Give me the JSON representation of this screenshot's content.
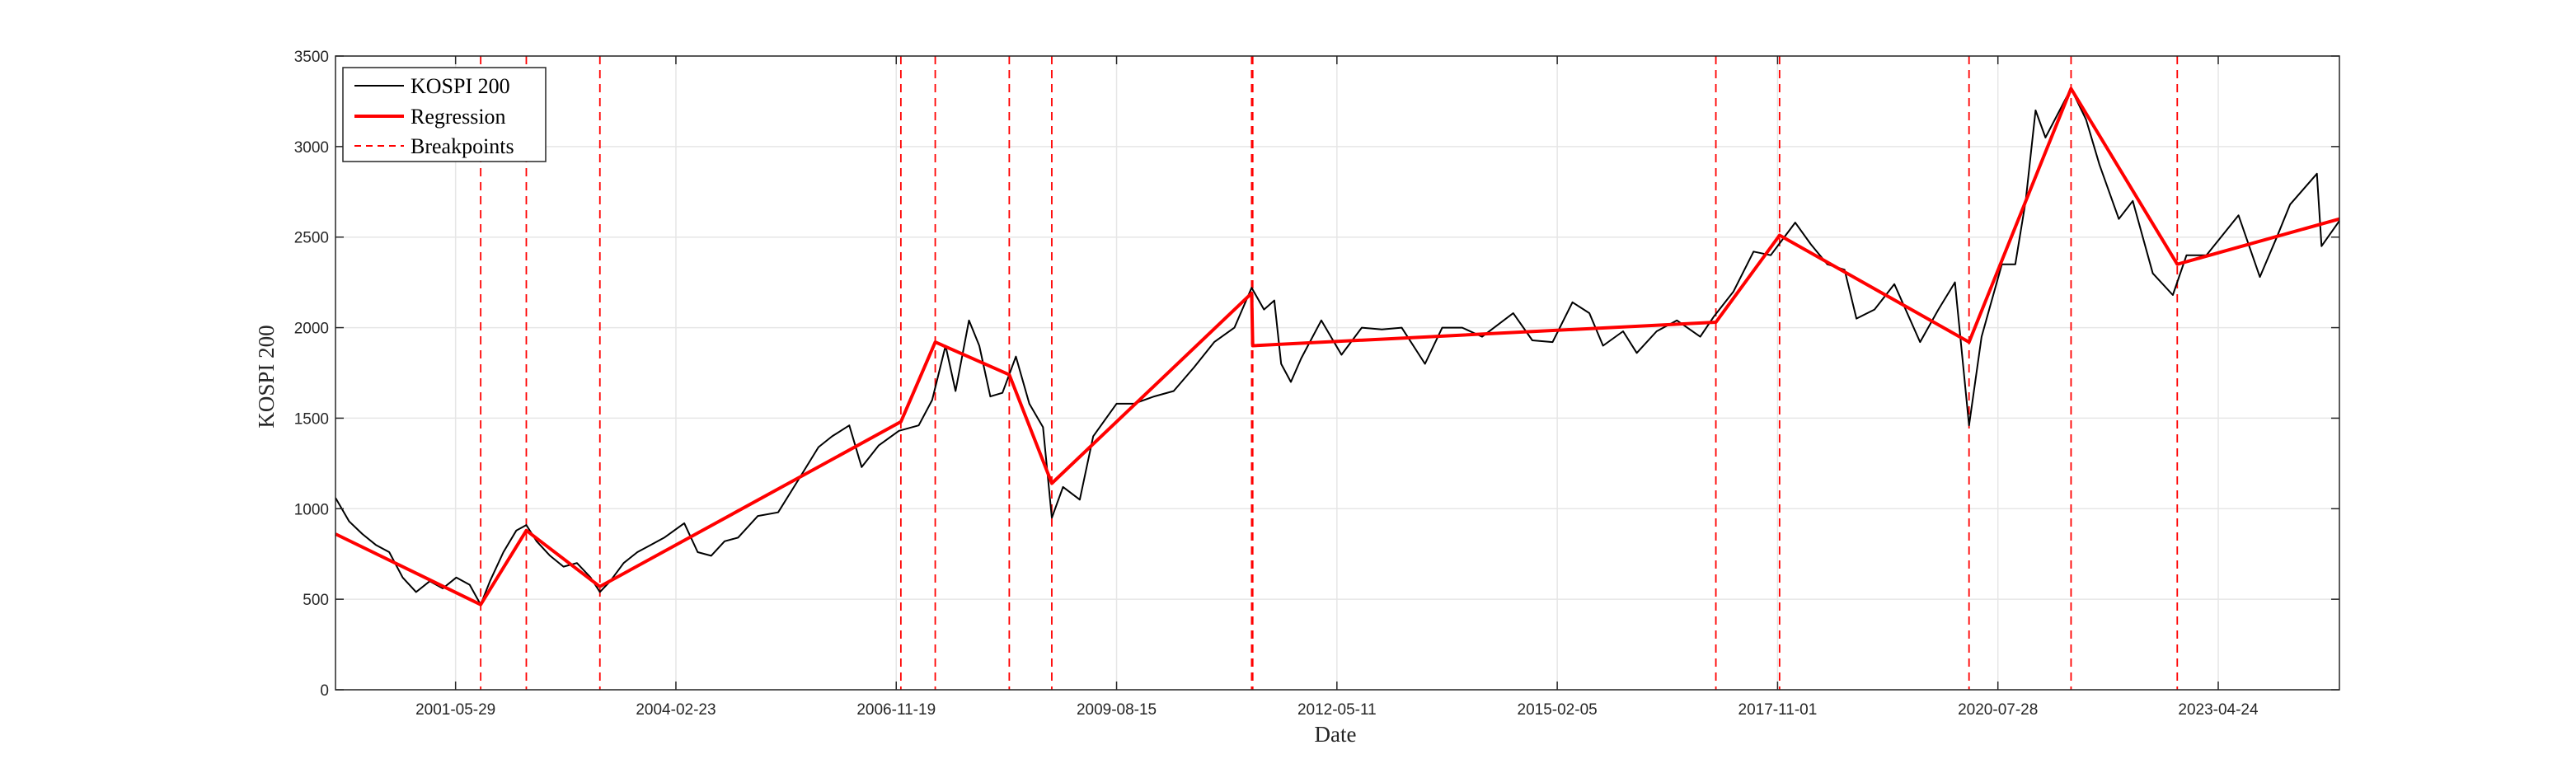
{
  "chart_data": {
    "type": "line",
    "title": "",
    "xlabel": "Date",
    "ylabel": "KOSPI 200",
    "x_range": [
      "1999-12-01",
      "2024-10-25"
    ],
    "ylim": [
      0,
      3500
    ],
    "y_ticks": [
      0,
      500,
      1000,
      1500,
      2000,
      2500,
      3000,
      3500
    ],
    "y_tick_labels": [
      "0",
      "500",
      "1000",
      "1500",
      "2000",
      "2500",
      "3000",
      "3500"
    ],
    "x_ticks": [
      "2001-05-29",
      "2004-02-23",
      "2006-11-19",
      "2009-08-15",
      "2012-05-11",
      "2015-02-05",
      "2017-11-01",
      "2020-07-28",
      "2023-04-24"
    ],
    "grid": true,
    "legend": {
      "placement": "top-left",
      "entries": [
        "KOSPI 200",
        "Regression",
        "Breakpoints"
      ]
    },
    "colors": {
      "kospi": "#000000",
      "regression": "#ff0000",
      "breakpoints": "#ff0000",
      "grid": "#e6e6e6",
      "axes": "#262626"
    },
    "series": [
      {
        "name": "KOSPI 200",
        "style": "solid-black-thin",
        "points": [
          [
            "1999-12-01",
            1060
          ],
          [
            "2000-02-01",
            930
          ],
          [
            "2000-04-01",
            860
          ],
          [
            "2000-06-01",
            800
          ],
          [
            "2000-08-01",
            760
          ],
          [
            "2000-10-01",
            620
          ],
          [
            "2000-12-01",
            540
          ],
          [
            "2001-02-01",
            600
          ],
          [
            "2001-04-01",
            560
          ],
          [
            "2001-06-01",
            620
          ],
          [
            "2001-08-01",
            580
          ],
          [
            "2001-09-20",
            470
          ],
          [
            "2001-11-01",
            600
          ],
          [
            "2002-01-01",
            760
          ],
          [
            "2002-03-01",
            880
          ],
          [
            "2002-04-15",
            910
          ],
          [
            "2002-06-01",
            820
          ],
          [
            "2002-08-01",
            740
          ],
          [
            "2002-10-01",
            680
          ],
          [
            "2002-12-01",
            700
          ],
          [
            "2003-02-01",
            620
          ],
          [
            "2003-03-15",
            540
          ],
          [
            "2003-05-01",
            600
          ],
          [
            "2003-07-01",
            700
          ],
          [
            "2003-09-01",
            760
          ],
          [
            "2003-11-01",
            800
          ],
          [
            "2004-01-01",
            840
          ],
          [
            "2004-04-01",
            920
          ],
          [
            "2004-06-01",
            760
          ],
          [
            "2004-08-01",
            740
          ],
          [
            "2004-10-01",
            820
          ],
          [
            "2004-12-01",
            840
          ],
          [
            "2005-03-01",
            960
          ],
          [
            "2005-06-01",
            980
          ],
          [
            "2005-09-01",
            1160
          ],
          [
            "2005-12-01",
            1340
          ],
          [
            "2006-02-01",
            1400
          ],
          [
            "2006-04-20",
            1460
          ],
          [
            "2006-06-15",
            1230
          ],
          [
            "2006-09-01",
            1350
          ],
          [
            "2006-12-01",
            1430
          ],
          [
            "2007-03-01",
            1460
          ],
          [
            "2007-05-01",
            1600
          ],
          [
            "2007-07-01",
            1900
          ],
          [
            "2007-08-15",
            1650
          ],
          [
            "2007-10-15",
            2040
          ],
          [
            "2007-12-01",
            1900
          ],
          [
            "2008-01-20",
            1620
          ],
          [
            "2008-03-15",
            1640
          ],
          [
            "2008-05-15",
            1840
          ],
          [
            "2008-07-15",
            1580
          ],
          [
            "2008-09-15",
            1450
          ],
          [
            "2008-10-25",
            950
          ],
          [
            "2008-12-15",
            1120
          ],
          [
            "2009-03-01",
            1050
          ],
          [
            "2009-05-01",
            1400
          ],
          [
            "2009-08-15",
            1580
          ],
          [
            "2009-11-01",
            1580
          ],
          [
            "2010-02-01",
            1620
          ],
          [
            "2010-05-01",
            1650
          ],
          [
            "2010-08-01",
            1780
          ],
          [
            "2010-11-01",
            1920
          ],
          [
            "2011-02-01",
            2000
          ],
          [
            "2011-04-20",
            2220
          ],
          [
            "2011-06-15",
            2100
          ],
          [
            "2011-08-01",
            2150
          ],
          [
            "2011-09-01",
            1800
          ],
          [
            "2011-10-15",
            1700
          ],
          [
            "2011-12-01",
            1830
          ],
          [
            "2012-03-01",
            2040
          ],
          [
            "2012-06-01",
            1850
          ],
          [
            "2012-09-01",
            2000
          ],
          [
            "2012-12-01",
            1990
          ],
          [
            "2013-03-01",
            2000
          ],
          [
            "2013-06-15",
            1800
          ],
          [
            "2013-09-01",
            2000
          ],
          [
            "2013-12-01",
            2000
          ],
          [
            "2014-03-01",
            1950
          ],
          [
            "2014-07-20",
            2080
          ],
          [
            "2014-10-15",
            1930
          ],
          [
            "2015-01-15",
            1920
          ],
          [
            "2015-04-15",
            2140
          ],
          [
            "2015-07-01",
            2080
          ],
          [
            "2015-09-01",
            1900
          ],
          [
            "2015-12-01",
            1980
          ],
          [
            "2016-02-01",
            1860
          ],
          [
            "2016-05-01",
            1980
          ],
          [
            "2016-08-01",
            2040
          ],
          [
            "2016-11-15",
            1950
          ],
          [
            "2017-01-15",
            2060
          ],
          [
            "2017-04-15",
            2200
          ],
          [
            "2017-07-15",
            2420
          ],
          [
            "2017-10-01",
            2400
          ],
          [
            "2018-01-20",
            2580
          ],
          [
            "2018-04-01",
            2460
          ],
          [
            "2018-06-15",
            2350
          ],
          [
            "2018-09-01",
            2320
          ],
          [
            "2018-10-25",
            2050
          ],
          [
            "2019-01-15",
            2100
          ],
          [
            "2019-04-15",
            2240
          ],
          [
            "2019-08-10",
            1920
          ],
          [
            "2019-11-01",
            2100
          ],
          [
            "2020-01-15",
            2250
          ],
          [
            "2020-03-19",
            1460
          ],
          [
            "2020-05-15",
            1950
          ],
          [
            "2020-08-15",
            2350
          ],
          [
            "2020-10-15",
            2350
          ],
          [
            "2020-12-01",
            2700
          ],
          [
            "2021-01-15",
            3200
          ],
          [
            "2021-03-01",
            3050
          ],
          [
            "2021-06-25",
            3320
          ],
          [
            "2021-09-01",
            3150
          ],
          [
            "2021-11-01",
            2900
          ],
          [
            "2022-01-28",
            2600
          ],
          [
            "2022-04-01",
            2700
          ],
          [
            "2022-07-01",
            2300
          ],
          [
            "2022-09-30",
            2180
          ],
          [
            "2022-12-01",
            2400
          ],
          [
            "2023-03-01",
            2400
          ],
          [
            "2023-07-25",
            2620
          ],
          [
            "2023-10-30",
            2280
          ],
          [
            "2024-01-15",
            2500
          ],
          [
            "2024-03-15",
            2680
          ],
          [
            "2024-07-15",
            2850
          ],
          [
            "2024-08-05",
            2450
          ],
          [
            "2024-10-25",
            2590
          ]
        ]
      },
      {
        "name": "Regression",
        "style": "solid-red-thick",
        "points": [
          [
            "1999-12-01",
            860
          ],
          [
            "2001-09-20",
            470
          ],
          [
            "2002-04-15",
            880
          ],
          [
            "2003-03-15",
            570
          ],
          [
            "2006-12-10",
            1480
          ],
          [
            "2007-05-15",
            1920
          ],
          [
            "2008-04-15",
            1740
          ],
          [
            "2008-10-25",
            1140
          ],
          [
            "2011-04-20",
            2190
          ],
          [
            "2011-04-25",
            1900
          ],
          [
            "2017-01-25",
            2030
          ],
          [
            "2017-11-10",
            2510
          ],
          [
            "2020-03-19",
            1920
          ],
          [
            "2021-06-25",
            3320
          ],
          [
            "2022-10-20",
            2350
          ],
          [
            "2024-10-25",
            2600
          ]
        ]
      }
    ],
    "breakpoints": [
      "2001-09-20",
      "2002-04-15",
      "2003-03-15",
      "2006-12-10",
      "2007-05-15",
      "2008-04-15",
      "2008-10-25",
      "2011-04-20",
      "2011-04-25",
      "2017-01-25",
      "2017-11-10",
      "2020-03-19",
      "2021-06-25",
      "2022-10-20"
    ]
  }
}
